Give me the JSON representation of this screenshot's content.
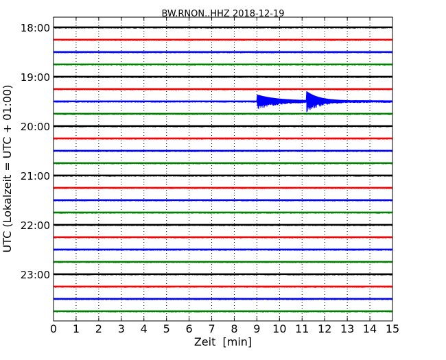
{
  "chart_data": {
    "type": "line",
    "title": "BW.RNON..HHZ 2018-12-19",
    "xlabel": "Zeit  [min]",
    "ylabel": "UTC (Lokalzeit = UTC + 01:00)",
    "xlim": [
      0,
      15
    ],
    "x_ticks": [
      0,
      1,
      2,
      3,
      4,
      5,
      6,
      7,
      8,
      9,
      10,
      11,
      12,
      13,
      14,
      15
    ],
    "x_tick_labels": [
      "0",
      "1",
      "2",
      "3",
      "4",
      "5",
      "6",
      "7",
      "8",
      "9",
      "10",
      "11",
      "12",
      "13",
      "14",
      "15"
    ],
    "y_tick_labels": [
      "18:00",
      "19:00",
      "20:00",
      "21:00",
      "22:00",
      "23:00"
    ],
    "y_tick_rows": [
      0,
      4,
      8,
      12,
      16,
      20
    ],
    "grid": "vertical dotted",
    "trace_colors": [
      "#000000",
      "#ff0000",
      "#0000ff",
      "#008000"
    ],
    "rows": 24,
    "row_interval_min": 15,
    "event": {
      "row": 6,
      "row_time": "19:30",
      "onsets_min": [
        9.0,
        11.2
      ],
      "coda_end_min": 13.3
    }
  }
}
